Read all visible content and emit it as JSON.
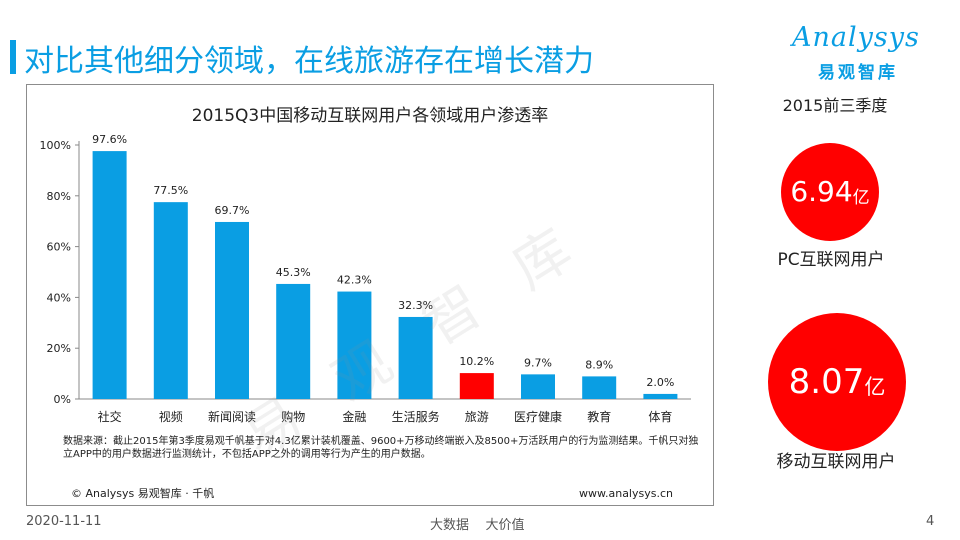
{
  "slide": {
    "title": "对比其他细分领域，在线旅游存在增长潜力",
    "logo_word": "Analysys",
    "logo_cn": "易观智库",
    "watermark": "易 观 智 库"
  },
  "chart_data": {
    "type": "bar",
    "title": "2015Q3中国移动互联网用户各领域用户渗透率",
    "categories": [
      "社交",
      "视频",
      "新闻阅读",
      "购物",
      "金融",
      "生活服务",
      "旅游",
      "医疗健康",
      "教育",
      "体育"
    ],
    "values": [
      97.6,
      77.5,
      69.7,
      45.3,
      42.3,
      32.3,
      10.2,
      9.7,
      8.9,
      2.0
    ],
    "value_labels": [
      "97.6%",
      "77.5%",
      "69.7%",
      "45.3%",
      "42.3%",
      "32.3%",
      "10.2%",
      "9.7%",
      "8.9%",
      "2.0%"
    ],
    "highlight_index": 6,
    "ylim": [
      0,
      100
    ],
    "yticks": [
      0,
      20,
      40,
      60,
      80,
      100
    ],
    "ytick_labels": [
      "0%",
      "20%",
      "40%",
      "60%",
      "80%",
      "100%"
    ],
    "xlabel": "",
    "ylabel": "",
    "colors": {
      "bar": "#0a9ee3",
      "highlight": "#ff0000"
    }
  },
  "chart_notes": {
    "source": "数据来源：截止2015年第3季度易观千帆基于对4.3亿累计装机覆盖、9600+万移动终端嵌入及8500+万活跃用户的行为监测结果。千帆只对独立APP中的用户数据进行监测统计，不包括APP之外的调用等行为产生的用户数据。",
    "copyright": "© Analysys 易观智库 · 千帆",
    "site": "www.analysys.cn"
  },
  "stats": {
    "period": "2015前三季度",
    "pc": {
      "value": "6.94",
      "unit": "亿",
      "label": "PC互联网用户"
    },
    "mobile": {
      "value": "8.07",
      "unit": "亿",
      "label": "移动互联网用户"
    }
  },
  "footer": {
    "date": "2020-11-11",
    "slogan": "大数据    大价值",
    "page": "4"
  }
}
